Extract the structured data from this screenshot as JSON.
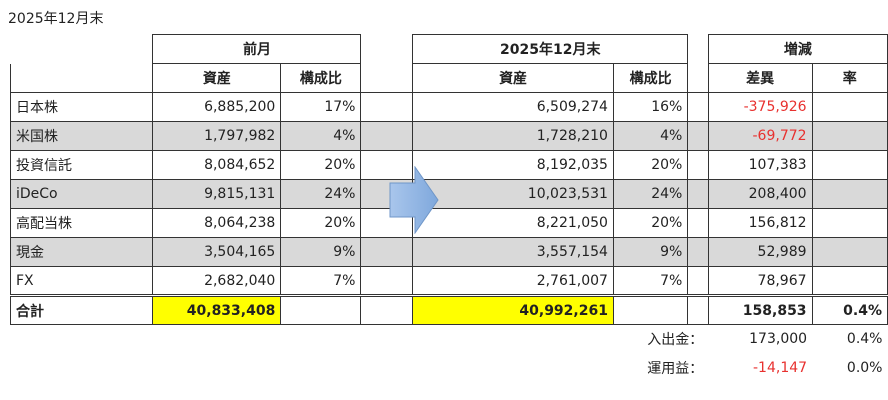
{
  "caption": "2025年12月末",
  "groups": {
    "prev": "前月",
    "curr": "2025年12月末",
    "change": "増減"
  },
  "cols": {
    "asset": "資産",
    "ratio": "構成比",
    "diff": "差異",
    "rate": "率"
  },
  "rows": [
    {
      "name": "日本株",
      "prev": "6,885,200",
      "prev_ratio": "17%",
      "curr": "6,509,274",
      "curr_ratio": "16%",
      "diff": "-375,926",
      "diff_negative": true,
      "rate": ""
    },
    {
      "name": "米国株",
      "prev": "1,797,982",
      "prev_ratio": "4%",
      "curr": "1,728,210",
      "curr_ratio": "4%",
      "diff": "-69,772",
      "diff_negative": true,
      "rate": ""
    },
    {
      "name": "投資信託",
      "prev": "8,084,652",
      "prev_ratio": "20%",
      "curr": "8,192,035",
      "curr_ratio": "20%",
      "diff": "107,383",
      "diff_negative": false,
      "rate": ""
    },
    {
      "name": "iDeCo",
      "prev": "9,815,131",
      "prev_ratio": "24%",
      "curr": "10,023,531",
      "curr_ratio": "24%",
      "diff": "208,400",
      "diff_negative": false,
      "rate": ""
    },
    {
      "name": "高配当株",
      "prev": "8,064,238",
      "prev_ratio": "20%",
      "curr": "8,221,050",
      "curr_ratio": "20%",
      "diff": "156,812",
      "diff_negative": false,
      "rate": ""
    },
    {
      "name": "現金",
      "prev": "3,504,165",
      "prev_ratio": "9%",
      "curr": "3,557,154",
      "curr_ratio": "9%",
      "diff": "52,989",
      "diff_negative": false,
      "rate": ""
    },
    {
      "name": "FX",
      "prev": "2,682,040",
      "prev_ratio": "7%",
      "curr": "2,761,007",
      "curr_ratio": "7%",
      "diff": "78,967",
      "diff_negative": false,
      "rate": ""
    }
  ],
  "total": {
    "label": "合計",
    "prev": "40,833,408",
    "curr": "40,992,261",
    "diff": "158,853",
    "rate": "0.4%"
  },
  "footer": [
    {
      "label": "入出金：",
      "value": "173,000",
      "value_negative": false,
      "rate": "0.4%"
    },
    {
      "label": "運用益：",
      "value": "-14,147",
      "value_negative": true,
      "rate": "0.0%"
    }
  ],
  "colors": {
    "negative": "#e8312f",
    "highlight": "#ffff00",
    "stripe": "#d9d9d9",
    "arrow": "#8eb4e3"
  },
  "icons": {
    "arrow": "right-arrow-icon"
  }
}
